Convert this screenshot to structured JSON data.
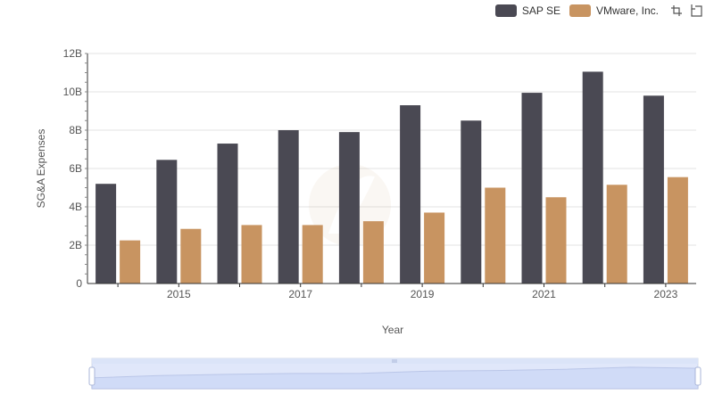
{
  "chart_data": {
    "type": "bar",
    "x_label": "Year",
    "y_label": "SG&A Expenses",
    "y_range": [
      0,
      12000000000
    ],
    "y_ticks": [
      "0",
      "2B",
      "4B",
      "6B",
      "8B",
      "10B",
      "12B"
    ],
    "x_tick_labels": [
      "2015",
      "2017",
      "2019",
      "2021",
      "2023"
    ],
    "categories": [
      "2014",
      "2015",
      "2016",
      "2017",
      "2018",
      "2019",
      "2020",
      "2021",
      "2022",
      "2023"
    ],
    "series": [
      {
        "name": "SAP SE",
        "color": "#4a4953",
        "values": [
          5200000000,
          6450000000,
          7300000000,
          8000000000,
          7900000000,
          9300000000,
          8500000000,
          9950000000,
          11050000000,
          9800000000
        ]
      },
      {
        "name": "VMware, Inc.",
        "color": "#c89461",
        "values": [
          2250000000,
          2850000000,
          3050000000,
          3050000000,
          3250000000,
          3700000000,
          5000000000,
          4500000000,
          5150000000,
          5550000000
        ]
      }
    ],
    "grid": true,
    "legend_position": "top-right"
  },
  "toolbar": {
    "zoom_icon": "zoom-icon",
    "reset_icon": "restore-icon"
  },
  "data_zoom": {
    "fill_color": "#dbe4f8",
    "handle_color": "#ffffff",
    "border_color": "#aab6d8",
    "range": [
      0,
      100
    ]
  }
}
